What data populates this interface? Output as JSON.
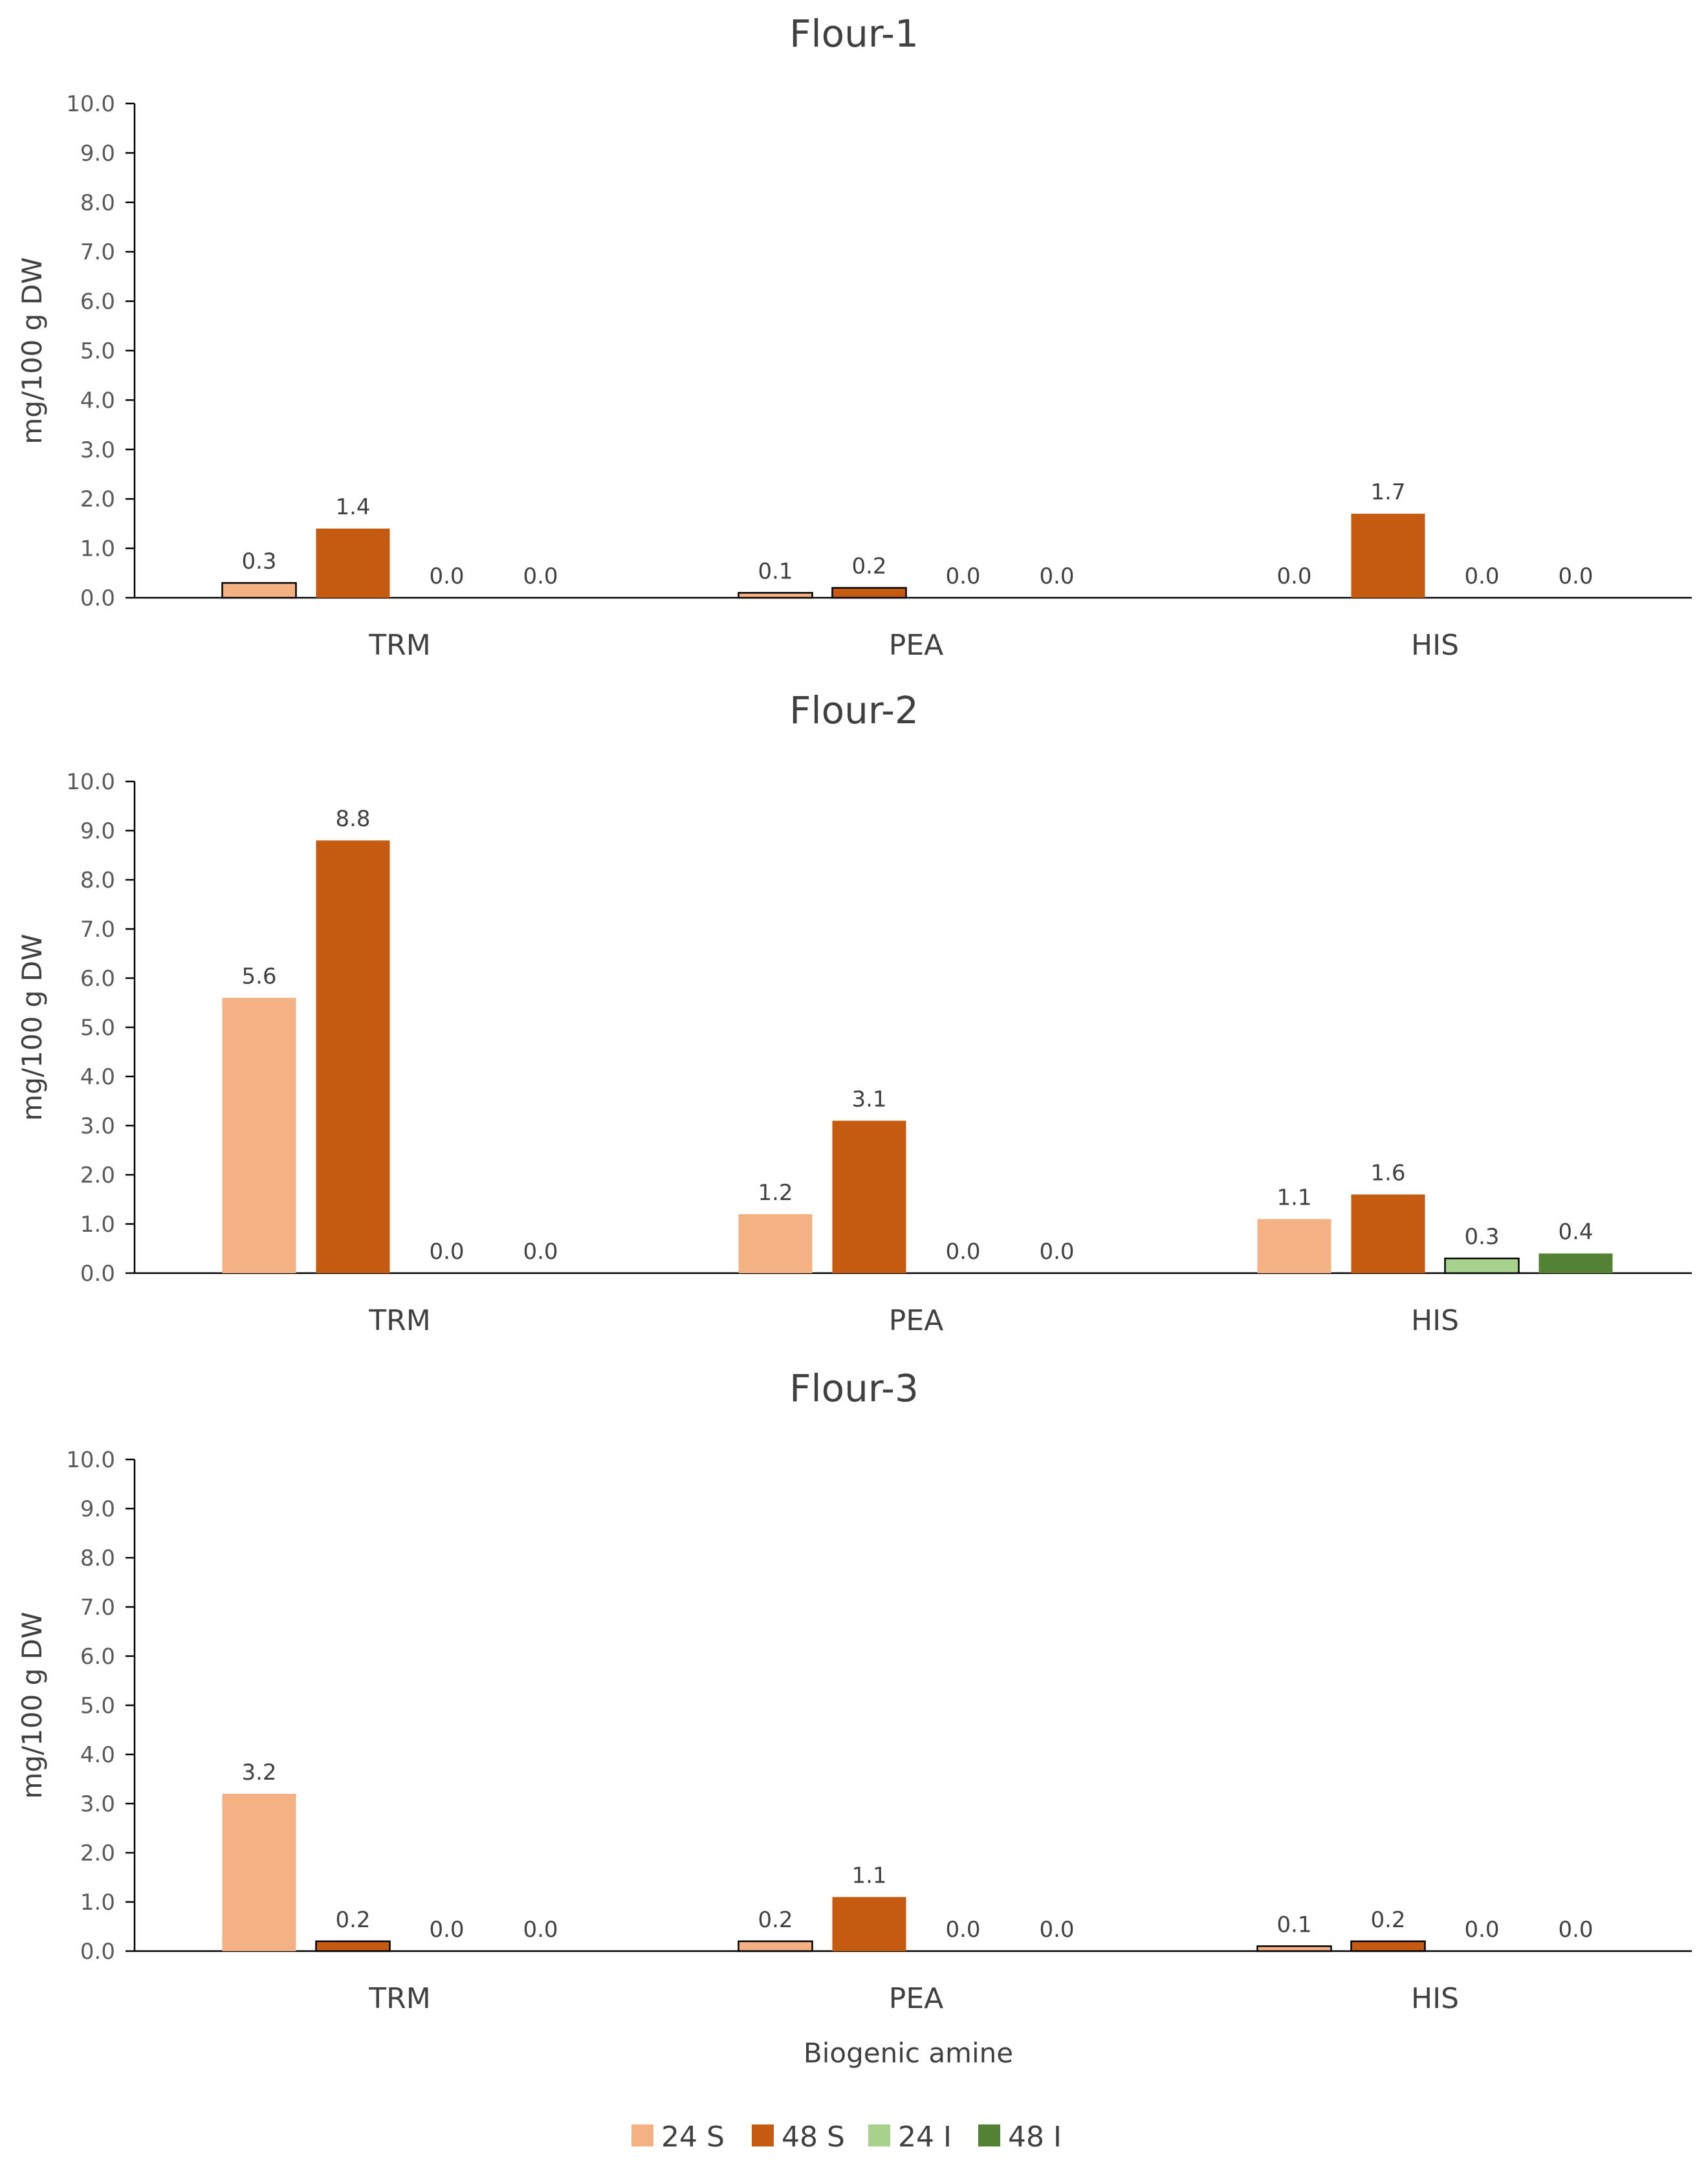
{
  "colors": {
    "24 S": "#F4B183",
    "48 S": "#C55A11",
    "24 I": "#A9D18E",
    "48 I": "#548235"
  },
  "chart_data": [
    {
      "type": "bar",
      "title": "Flour-1",
      "xlabel": "",
      "ylabel": "mg/100 g DW",
      "ylim": [
        0,
        10
      ],
      "yticks": [
        "0.0",
        "1.0",
        "2.0",
        "3.0",
        "4.0",
        "5.0",
        "6.0",
        "7.0",
        "8.0",
        "9.0",
        "10.0"
      ],
      "categories": [
        "TRM",
        "PEA",
        "HIS"
      ],
      "series": [
        {
          "name": "24 S",
          "values": [
            0.3,
            0.1,
            0.0
          ]
        },
        {
          "name": "48 S",
          "values": [
            1.4,
            0.2,
            1.7
          ]
        },
        {
          "name": "24 I",
          "values": [
            0.0,
            0.0,
            0.0
          ]
        },
        {
          "name": "48 I",
          "values": [
            0.0,
            0.0,
            0.0
          ]
        }
      ]
    },
    {
      "type": "bar",
      "title": "Flour-2",
      "xlabel": "",
      "ylabel": "mg/100 g DW",
      "ylim": [
        0,
        10
      ],
      "yticks": [
        "0.0",
        "1.0",
        "2.0",
        "3.0",
        "4.0",
        "5.0",
        "6.0",
        "7.0",
        "8.0",
        "9.0",
        "10.0"
      ],
      "categories": [
        "TRM",
        "PEA",
        "HIS"
      ],
      "series": [
        {
          "name": "24 S",
          "values": [
            5.6,
            1.2,
            1.1
          ]
        },
        {
          "name": "48 S",
          "values": [
            8.8,
            3.1,
            1.6
          ]
        },
        {
          "name": "24 I",
          "values": [
            0.0,
            0.0,
            0.3
          ]
        },
        {
          "name": "48 I",
          "values": [
            0.0,
            0.0,
            0.4
          ]
        }
      ]
    },
    {
      "type": "bar",
      "title": "Flour-3",
      "xlabel": "Biogenic amine",
      "ylabel": "mg/100 g DW",
      "ylim": [
        0,
        10
      ],
      "yticks": [
        "0.0",
        "1.0",
        "2.0",
        "3.0",
        "4.0",
        "5.0",
        "6.0",
        "7.0",
        "8.0",
        "9.0",
        "10.0"
      ],
      "categories": [
        "TRM",
        "PEA",
        "HIS"
      ],
      "series": [
        {
          "name": "24 S",
          "values": [
            3.2,
            0.2,
            0.1
          ]
        },
        {
          "name": "48 S",
          "values": [
            0.2,
            1.1,
            0.2
          ]
        },
        {
          "name": "24 I",
          "values": [
            0.0,
            0.0,
            0.0
          ]
        },
        {
          "name": "48 I",
          "values": [
            0.0,
            0.0,
            0.0
          ]
        }
      ]
    }
  ],
  "legend": {
    "position": "bottom",
    "items": [
      "24 S",
      "48 S",
      "24 I",
      "48 I"
    ]
  }
}
